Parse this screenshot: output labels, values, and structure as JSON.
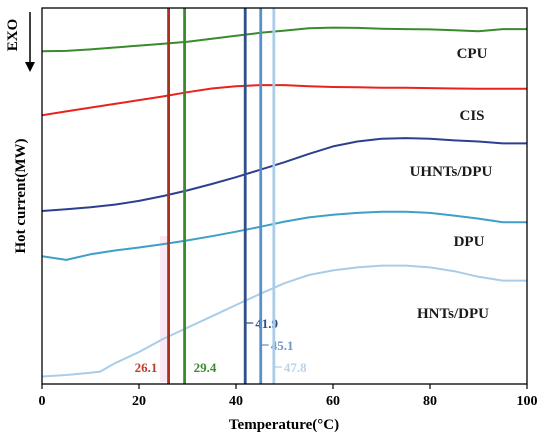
{
  "chart_data": {
    "type": "line",
    "xlabel": "Temperature(°C)",
    "ylabel": "Hot current(MW)",
    "exo_label": "EXO",
    "xlim": [
      0,
      100
    ],
    "xticks": [
      0,
      20,
      40,
      60,
      80,
      100
    ],
    "y_ticks_shown": false,
    "grid": false,
    "series": [
      {
        "name": "CPU",
        "color": "#3a8a2e",
        "x": [
          0,
          5,
          10,
          15,
          20,
          25,
          30,
          35,
          40,
          45,
          50,
          55,
          60,
          65,
          70,
          75,
          80,
          85,
          90,
          95,
          100
        ],
        "y": [
          0.885,
          0.886,
          0.89,
          0.895,
          0.9,
          0.905,
          0.91,
          0.918,
          0.926,
          0.934,
          0.94,
          0.946,
          0.948,
          0.947,
          0.945,
          0.944,
          0.943,
          0.941,
          0.938,
          0.944,
          0.944
        ]
      },
      {
        "name": "CIS",
        "color": "#e8231e",
        "x": [
          0,
          5,
          10,
          15,
          20,
          25,
          30,
          35,
          40,
          45,
          50,
          55,
          60,
          65,
          70,
          75,
          80,
          85,
          90,
          95,
          100
        ],
        "y": [
          0.715,
          0.725,
          0.735,
          0.745,
          0.755,
          0.765,
          0.776,
          0.786,
          0.792,
          0.795,
          0.795,
          0.792,
          0.79,
          0.789,
          0.788,
          0.788,
          0.787,
          0.786,
          0.785,
          0.785,
          0.785
        ]
      },
      {
        "name": "UHNTs/DPU",
        "color": "#2f3f8f",
        "x": [
          0,
          5,
          10,
          15,
          20,
          25,
          30,
          35,
          40,
          45,
          50,
          55,
          60,
          65,
          70,
          75,
          80,
          85,
          90,
          95,
          100
        ],
        "y": [
          0.46,
          0.465,
          0.47,
          0.477,
          0.487,
          0.5,
          0.515,
          0.532,
          0.55,
          0.57,
          0.59,
          0.612,
          0.632,
          0.645,
          0.652,
          0.654,
          0.652,
          0.648,
          0.645,
          0.64,
          0.64
        ]
      },
      {
        "name": "DPU",
        "color": "#3f9fc8",
        "x": [
          0,
          5,
          10,
          15,
          20,
          25,
          30,
          35,
          40,
          45,
          50,
          55,
          60,
          65,
          70,
          75,
          80,
          85,
          90,
          95,
          100
        ],
        "y": [
          0.34,
          0.33,
          0.345,
          0.355,
          0.363,
          0.372,
          0.382,
          0.393,
          0.405,
          0.418,
          0.432,
          0.443,
          0.45,
          0.455,
          0.458,
          0.458,
          0.455,
          0.448,
          0.44,
          0.43,
          0.43
        ]
      },
      {
        "name": "HNTs/DPU",
        "color": "#a9cde8",
        "x": [
          0,
          5,
          10,
          12,
          15,
          20,
          25,
          30,
          35,
          40,
          45,
          50,
          55,
          60,
          65,
          70,
          75,
          80,
          85,
          90,
          95,
          100
        ],
        "y": [
          0.02,
          0.024,
          0.03,
          0.033,
          0.055,
          0.085,
          0.12,
          0.15,
          0.18,
          0.21,
          0.24,
          0.268,
          0.29,
          0.302,
          0.31,
          0.315,
          0.315,
          0.31,
          0.3,
          0.285,
          0.275,
          0.275
        ]
      }
    ],
    "markers": [
      {
        "x": 26.1,
        "label": "26.1",
        "color": "#a8311e",
        "label_color": "#c0392b"
      },
      {
        "x": 29.4,
        "label": "29.4",
        "color": "#3a8a2e",
        "label_color": "#3a8a2e"
      },
      {
        "x": 41.9,
        "label": "41.9",
        "color": "#2f4f8a",
        "label_color": "#2f4f8a"
      },
      {
        "x": 45.1,
        "label": "45.1",
        "color": "#5a8fc8",
        "label_color": "#6f96c8"
      },
      {
        "x": 47.8,
        "label": "47.8",
        "color": "#a9cde8",
        "label_color": "#b8d3ea"
      }
    ]
  }
}
